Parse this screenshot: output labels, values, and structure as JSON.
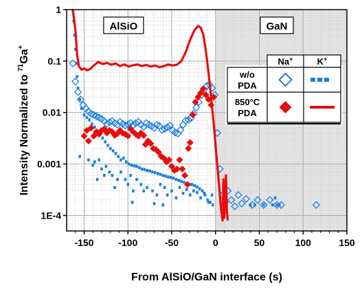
{
  "chart_data": {
    "type": "scatter",
    "title": "",
    "xlabel": "From AlSiO/GaN interface (s)",
    "ylabel_parts": {
      "prefix": "Intensity Normalized to ",
      "sup": "71",
      "suffix": "Ga",
      "sup2": "+"
    },
    "xlim": [
      -170,
      150
    ],
    "ylim": [
      5e-05,
      1
    ],
    "yscale": "log",
    "xticks": [
      -150,
      -100,
      -50,
      0,
      50,
      100,
      150
    ],
    "xtick_labels": [
      "-150",
      "-100",
      "-50",
      "0",
      "50",
      "100",
      "150"
    ],
    "yticks": [
      0.0001,
      0.001,
      0.01,
      0.1,
      1
    ],
    "ytick_labels": [
      "1E-4",
      "0.001",
      "0.01",
      "0.1",
      "1"
    ],
    "grid": true,
    "regions": [
      {
        "label": "AlSiO",
        "from": -170,
        "to": 0,
        "color": "#ffffff"
      },
      {
        "label": "GaN",
        "from": 0,
        "to": 150,
        "color": "#e2e2e2"
      }
    ],
    "legend": {
      "placement": "top-right",
      "col_headers": {
        "na": "Na",
        "na_sup": "+",
        "k": "K",
        "k_sup": "+"
      },
      "rows": [
        {
          "line1": "w/o",
          "line2": "PDA"
        },
        {
          "line1": "850°C",
          "line2": "PDA"
        }
      ]
    },
    "series": [
      {
        "key": "na_wo",
        "marker": "diamond-open",
        "color": "#1e7fe0",
        "points": [
          [
            -163,
            0.09
          ],
          [
            -160,
            0.04
          ],
          [
            -157,
            0.025
          ],
          [
            -154,
            0.018
          ],
          [
            -151,
            0.014
          ],
          [
            -148,
            0.012
          ],
          [
            -145,
            0.0105
          ],
          [
            -142,
            0.0095
          ],
          [
            -139,
            0.009
          ],
          [
            -136,
            0.0085
          ],
          [
            -133,
            0.008
          ],
          [
            -130,
            0.0075
          ],
          [
            -127,
            0.0068
          ],
          [
            -124,
            0.006
          ],
          [
            -121,
            0.0065
          ],
          [
            -118,
            0.0068
          ],
          [
            -115,
            0.0062
          ],
          [
            -112,
            0.0058
          ],
          [
            -109,
            0.0066
          ],
          [
            -106,
            0.006
          ],
          [
            -103,
            0.0056
          ],
          [
            -100,
            0.0059
          ],
          [
            -97,
            0.0063
          ],
          [
            -94,
            0.0057
          ],
          [
            -91,
            0.0062
          ],
          [
            -88,
            0.0066
          ],
          [
            -85,
            0.0058
          ],
          [
            -82,
            0.0053
          ],
          [
            -79,
            0.0062
          ],
          [
            -76,
            0.0058
          ],
          [
            -73,
            0.0054
          ],
          [
            -70,
            0.005
          ],
          [
            -67,
            0.0058
          ],
          [
            -64,
            0.0055
          ],
          [
            -61,
            0.0046
          ],
          [
            -58,
            0.0048
          ],
          [
            -55,
            0.0052
          ],
          [
            -52,
            0.0056
          ],
          [
            -49,
            0.0045
          ],
          [
            -46,
            0.0041
          ],
          [
            -43,
            0.0039
          ],
          [
            -40,
            0.0046
          ],
          [
            -37,
            0.0058
          ],
          [
            -34,
            0.007
          ],
          [
            -31,
            0.0072
          ],
          [
            -28,
            0.0078
          ],
          [
            -25,
            0.0095
          ],
          [
            -22,
            0.0125
          ],
          [
            -19,
            0.016
          ],
          [
            -16,
            0.022
          ],
          [
            -13,
            0.028
          ],
          [
            -10,
            0.033
          ],
          [
            -7,
            0.035
          ],
          [
            -4,
            0.03
          ],
          [
            -1,
            0.022
          ],
          [
            2,
            0.004
          ],
          [
            5,
            0.0008
          ],
          [
            8,
            0.00025
          ],
          [
            11,
            0.00018
          ],
          [
            14,
            0.0003
          ],
          [
            18,
            0.0002
          ],
          [
            22,
            0.00015
          ],
          [
            26,
            0.00025
          ],
          [
            30,
            0.00017
          ],
          [
            35,
            0.00021
          ],
          [
            42,
            0.00016
          ],
          [
            48,
            0.0002
          ],
          [
            55,
            0.00016
          ],
          [
            62,
            0.0002
          ],
          [
            70,
            0.00016
          ],
          [
            75,
            0.00016
          ],
          [
            115,
            0.00016
          ]
        ]
      },
      {
        "key": "k_wo",
        "marker": "dash-square",
        "color": "#1e7fe0",
        "points": [
          [
            -163,
            1.0
          ],
          [
            -162,
            0.6
          ],
          [
            -161,
            0.32
          ],
          [
            -160,
            0.17
          ],
          [
            -159,
            0.09
          ],
          [
            -158,
            0.05
          ],
          [
            -157,
            0.03
          ],
          [
            -155,
            0.018
          ],
          [
            -153,
            0.012
          ],
          [
            -150,
            0.009
          ],
          [
            -147,
            0.008
          ],
          [
            -144,
            0.0072
          ],
          [
            -141,
            0.006
          ],
          [
            -138,
            0.0052
          ],
          [
            -135,
            0.0044
          ],
          [
            -132,
            0.0038
          ],
          [
            -129,
            0.0032
          ],
          [
            -126,
            0.0027
          ],
          [
            -123,
            0.0023
          ],
          [
            -120,
            0.002
          ],
          [
            -117,
            0.0018
          ],
          [
            -114,
            0.0016
          ],
          [
            -111,
            0.0014
          ],
          [
            -108,
            0.0012
          ],
          [
            -105,
            0.0013
          ],
          [
            -102,
            0.0011
          ],
          [
            -99,
            0.001
          ],
          [
            -96,
            0.00095
          ],
          [
            -93,
            0.00092
          ],
          [
            -90,
            0.0009
          ],
          [
            -87,
            0.00085
          ],
          [
            -84,
            0.0008
          ],
          [
            -81,
            0.00078
          ],
          [
            -78,
            0.00075
          ],
          [
            -75,
            0.00073
          ],
          [
            -72,
            0.0007
          ],
          [
            -69,
            0.00068
          ],
          [
            -66,
            0.00065
          ],
          [
            -63,
            0.00063
          ],
          [
            -60,
            0.0006
          ],
          [
            -57,
            0.00058
          ],
          [
            -54,
            0.00056
          ],
          [
            -51,
            0.00055
          ],
          [
            -48,
            0.00053
          ],
          [
            -45,
            0.0005
          ],
          [
            -42,
            0.00048
          ],
          [
            -39,
            0.00046
          ],
          [
            -36,
            0.00044
          ],
          [
            -33,
            0.00042
          ],
          [
            -30,
            0.0004
          ],
          [
            -27,
            0.0004
          ],
          [
            -24,
            0.00038
          ],
          [
            -21,
            0.00036
          ],
          [
            -18,
            0.00033
          ],
          [
            -15,
            0.0003
          ],
          [
            -12,
            0.00025
          ],
          [
            -9,
            0.0002
          ],
          [
            -6,
            0.00018
          ],
          [
            -3,
            0.00016
          ],
          [
            -140,
            0.00095
          ],
          [
            -138,
            0.0011
          ],
          [
            -133,
            0.0012
          ],
          [
            -130,
            0.0008
          ],
          [
            -127,
            0.0006
          ],
          [
            -125,
            0.0009
          ],
          [
            -121,
            0.0007
          ],
          [
            -118,
            0.0006
          ],
          [
            -112,
            0.0005
          ],
          [
            -108,
            0.0007
          ],
          [
            -103,
            0.0005
          ],
          [
            -100,
            0.0004
          ],
          [
            -97,
            0.0006
          ],
          [
            -94,
            0.0003
          ],
          [
            -90,
            0.0005
          ],
          [
            -85,
            0.0004
          ],
          [
            -82,
            0.0003
          ],
          [
            -78,
            0.00035
          ],
          [
            -72,
            0.0003
          ],
          [
            -67,
            0.00025
          ],
          [
            -63,
            0.0004
          ],
          [
            -58,
            0.00035
          ],
          [
            -55,
            0.00025
          ],
          [
            -50,
            0.0003
          ],
          [
            -45,
            0.00022
          ],
          [
            -41,
            0.00035
          ],
          [
            -37,
            0.00027
          ],
          [
            -33,
            0.00032
          ],
          [
            -29,
            0.00025
          ],
          [
            -25,
            0.0003
          ],
          [
            -21,
            0.00028
          ],
          [
            -17,
            0.00022
          ],
          [
            -13,
            0.00027
          ],
          [
            -8,
            0.00018
          ],
          [
            -4,
            0.00025
          ],
          [
            -155,
            0.0014
          ],
          [
            -145,
            0.0012
          ],
          [
            -135,
            0.0005
          ],
          [
            -115,
            0.00035
          ],
          [
            -95,
            0.00018
          ],
          [
            -70,
            0.00017
          ],
          [
            -60,
            0.00016
          ],
          [
            40,
            0.00016
          ],
          [
            45,
            0.00016
          ],
          [
            55,
            0.00016
          ],
          [
            65,
            0.00016
          ],
          [
            68,
            0.00022
          ],
          [
            70,
            0.00016
          ],
          [
            73,
            0.00016
          ]
        ]
      },
      {
        "key": "na_850",
        "marker": "diamond-filled",
        "color": "#e80c0c",
        "points": [
          [
            -150,
            0.0035
          ],
          [
            -147,
            0.0045
          ],
          [
            -145,
            0.0028
          ],
          [
            -142,
            0.005
          ],
          [
            -139,
            0.0035
          ],
          [
            -136,
            0.0042
          ],
          [
            -133,
            0.0038
          ],
          [
            -130,
            0.0045
          ],
          [
            -127,
            0.0048
          ],
          [
            -124,
            0.004
          ],
          [
            -121,
            0.0045
          ],
          [
            -118,
            0.0042
          ],
          [
            -115,
            0.0036
          ],
          [
            -112,
            0.0039
          ],
          [
            -109,
            0.0045
          ],
          [
            -106,
            0.004
          ],
          [
            -103,
            0.0038
          ],
          [
            -100,
            0.0035
          ],
          [
            -97,
            0.0048
          ],
          [
            -94,
            0.0042
          ],
          [
            -91,
            0.0038
          ],
          [
            -88,
            0.0035
          ],
          [
            -85,
            0.004
          ],
          [
            -82,
            0.0036
          ],
          [
            -80,
            0.0024
          ],
          [
            -77,
            0.0028
          ],
          [
            -74,
            0.0025
          ],
          [
            -71,
            0.002
          ],
          [
            -68,
            0.0019
          ],
          [
            -65,
            0.0017
          ],
          [
            -62,
            0.0014
          ],
          [
            -59,
            0.0013
          ],
          [
            -56,
            0.0011
          ],
          [
            -53,
            0.0012
          ],
          [
            -50,
            0.0009
          ],
          [
            -47,
            0.00075
          ],
          [
            -44,
            0.0008
          ],
          [
            -41,
            0.0012
          ],
          [
            -38,
            0.0008
          ],
          [
            -35,
            0.0006
          ],
          [
            -32,
            0.0004
          ],
          [
            -31,
            0.002
          ],
          [
            -29,
            0.0026
          ],
          [
            -26,
            0.009
          ],
          [
            -23,
            0.016
          ],
          [
            -20,
            0.02
          ],
          [
            -17,
            0.024
          ],
          [
            -14,
            0.029
          ],
          [
            -11,
            0.022
          ],
          [
            -8,
            0.018
          ],
          [
            -5,
            0.014
          ],
          [
            -2,
            0.02
          ]
        ]
      },
      {
        "key": "k_850",
        "marker": "line",
        "color": "#e80c0c",
        "points": [
          [
            -163,
            1.0
          ],
          [
            -160,
            0.4
          ],
          [
            -158,
            0.13
          ],
          [
            -156,
            0.08
          ],
          [
            -153,
            0.068
          ],
          [
            -150,
            0.072
          ],
          [
            -147,
            0.066
          ],
          [
            -143,
            0.07
          ],
          [
            -139,
            0.082
          ],
          [
            -134,
            0.096
          ],
          [
            -129,
            0.088
          ],
          [
            -124,
            0.092
          ],
          [
            -119,
            0.085
          ],
          [
            -114,
            0.09
          ],
          [
            -109,
            0.08
          ],
          [
            -104,
            0.086
          ],
          [
            -99,
            0.078
          ],
          [
            -94,
            0.083
          ],
          [
            -89,
            0.086
          ],
          [
            -84,
            0.08
          ],
          [
            -79,
            0.084
          ],
          [
            -74,
            0.078
          ],
          [
            -69,
            0.082
          ],
          [
            -64,
            0.076
          ],
          [
            -59,
            0.08
          ],
          [
            -54,
            0.086
          ],
          [
            -49,
            0.082
          ],
          [
            -44,
            0.085
          ],
          [
            -39,
            0.1
          ],
          [
            -34,
            0.15
          ],
          [
            -29,
            0.26
          ],
          [
            -24,
            0.4
          ],
          [
            -20,
            0.48
          ],
          [
            -17,
            0.45
          ],
          [
            -14,
            0.33
          ],
          [
            -11,
            0.16
          ],
          [
            -8,
            0.06
          ],
          [
            -5,
            0.02
          ],
          [
            -2,
            0.006
          ],
          [
            1,
            0.0015
          ],
          [
            4,
            0.0004
          ],
          [
            6,
            0.00015
          ],
          [
            8,
            8e-05
          ],
          [
            9,
            0.0005
          ],
          [
            10,
            9e-05
          ],
          [
            12,
            0.0006
          ],
          [
            13,
            0.00012
          ],
          [
            14,
            8e-05
          ]
        ]
      }
    ]
  }
}
